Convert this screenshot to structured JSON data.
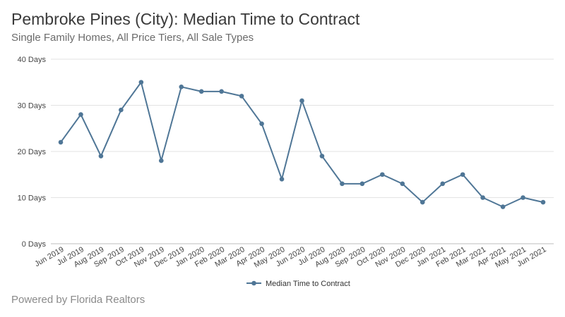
{
  "header": {
    "title": "Pembroke Pines (City): Median Time to Contract",
    "subtitle": "Single Family Homes, All Price Tiers, All Sale Types"
  },
  "footer": {
    "text": "Powered by Florida Realtors"
  },
  "chart_data": {
    "type": "line",
    "title": "Pembroke Pines (City): Median Time to Contract",
    "subtitle": "Single Family Homes, All Price Tiers, All Sale Types",
    "xlabel": "",
    "ylabel": "",
    "ylim": [
      0,
      40
    ],
    "y_ticks": [
      0,
      10,
      20,
      30,
      40
    ],
    "y_tick_labels": [
      "0 Days",
      "10 Days",
      "20 Days",
      "30 Days",
      "40 Days"
    ],
    "grid": true,
    "legend_position": "bottom",
    "categories": [
      "Jun 2019",
      "Jul 2019",
      "Aug 2019",
      "Sep 2019",
      "Oct 2019",
      "Nov 2019",
      "Dec 2019",
      "Jan 2020",
      "Feb 2020",
      "Mar 2020",
      "Apr 2020",
      "May 2020",
      "Jun 2020",
      "Jul 2020",
      "Aug 2020",
      "Sep 2020",
      "Oct 2020",
      "Nov 2020",
      "Dec 2020",
      "Jan 2021",
      "Feb 2021",
      "Mar 2021",
      "Apr 2021",
      "May 2021",
      "Jun 2021"
    ],
    "series": [
      {
        "name": "Median Time to Contract",
        "color": "#4f7696",
        "values": [
          22,
          28,
          19,
          29,
          35,
          18,
          34,
          33,
          33,
          32,
          26,
          14,
          31,
          19,
          13,
          13,
          15,
          13,
          9,
          13,
          15,
          10,
          8,
          10,
          9
        ]
      }
    ]
  }
}
